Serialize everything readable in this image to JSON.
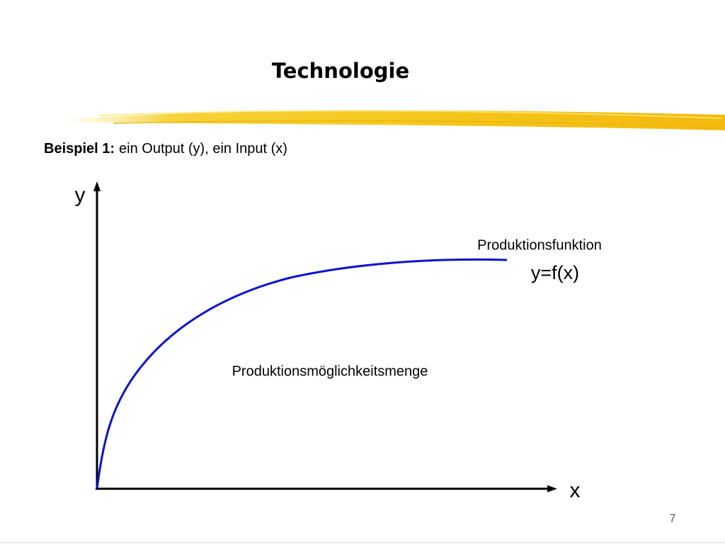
{
  "header": {
    "title": "Technologie"
  },
  "subtitle": {
    "bold": "Beispiel 1:",
    "text": "ein Output (y), ein Input (x)"
  },
  "diagram": {
    "y_axis_label": "y",
    "x_axis_label": "x",
    "curve_label": "Produktionsfunktion",
    "curve_formula": "y=f(x)",
    "area_label": "Produktionsmöglichkeitsmenge"
  },
  "footer": {
    "page_number": "7"
  }
}
